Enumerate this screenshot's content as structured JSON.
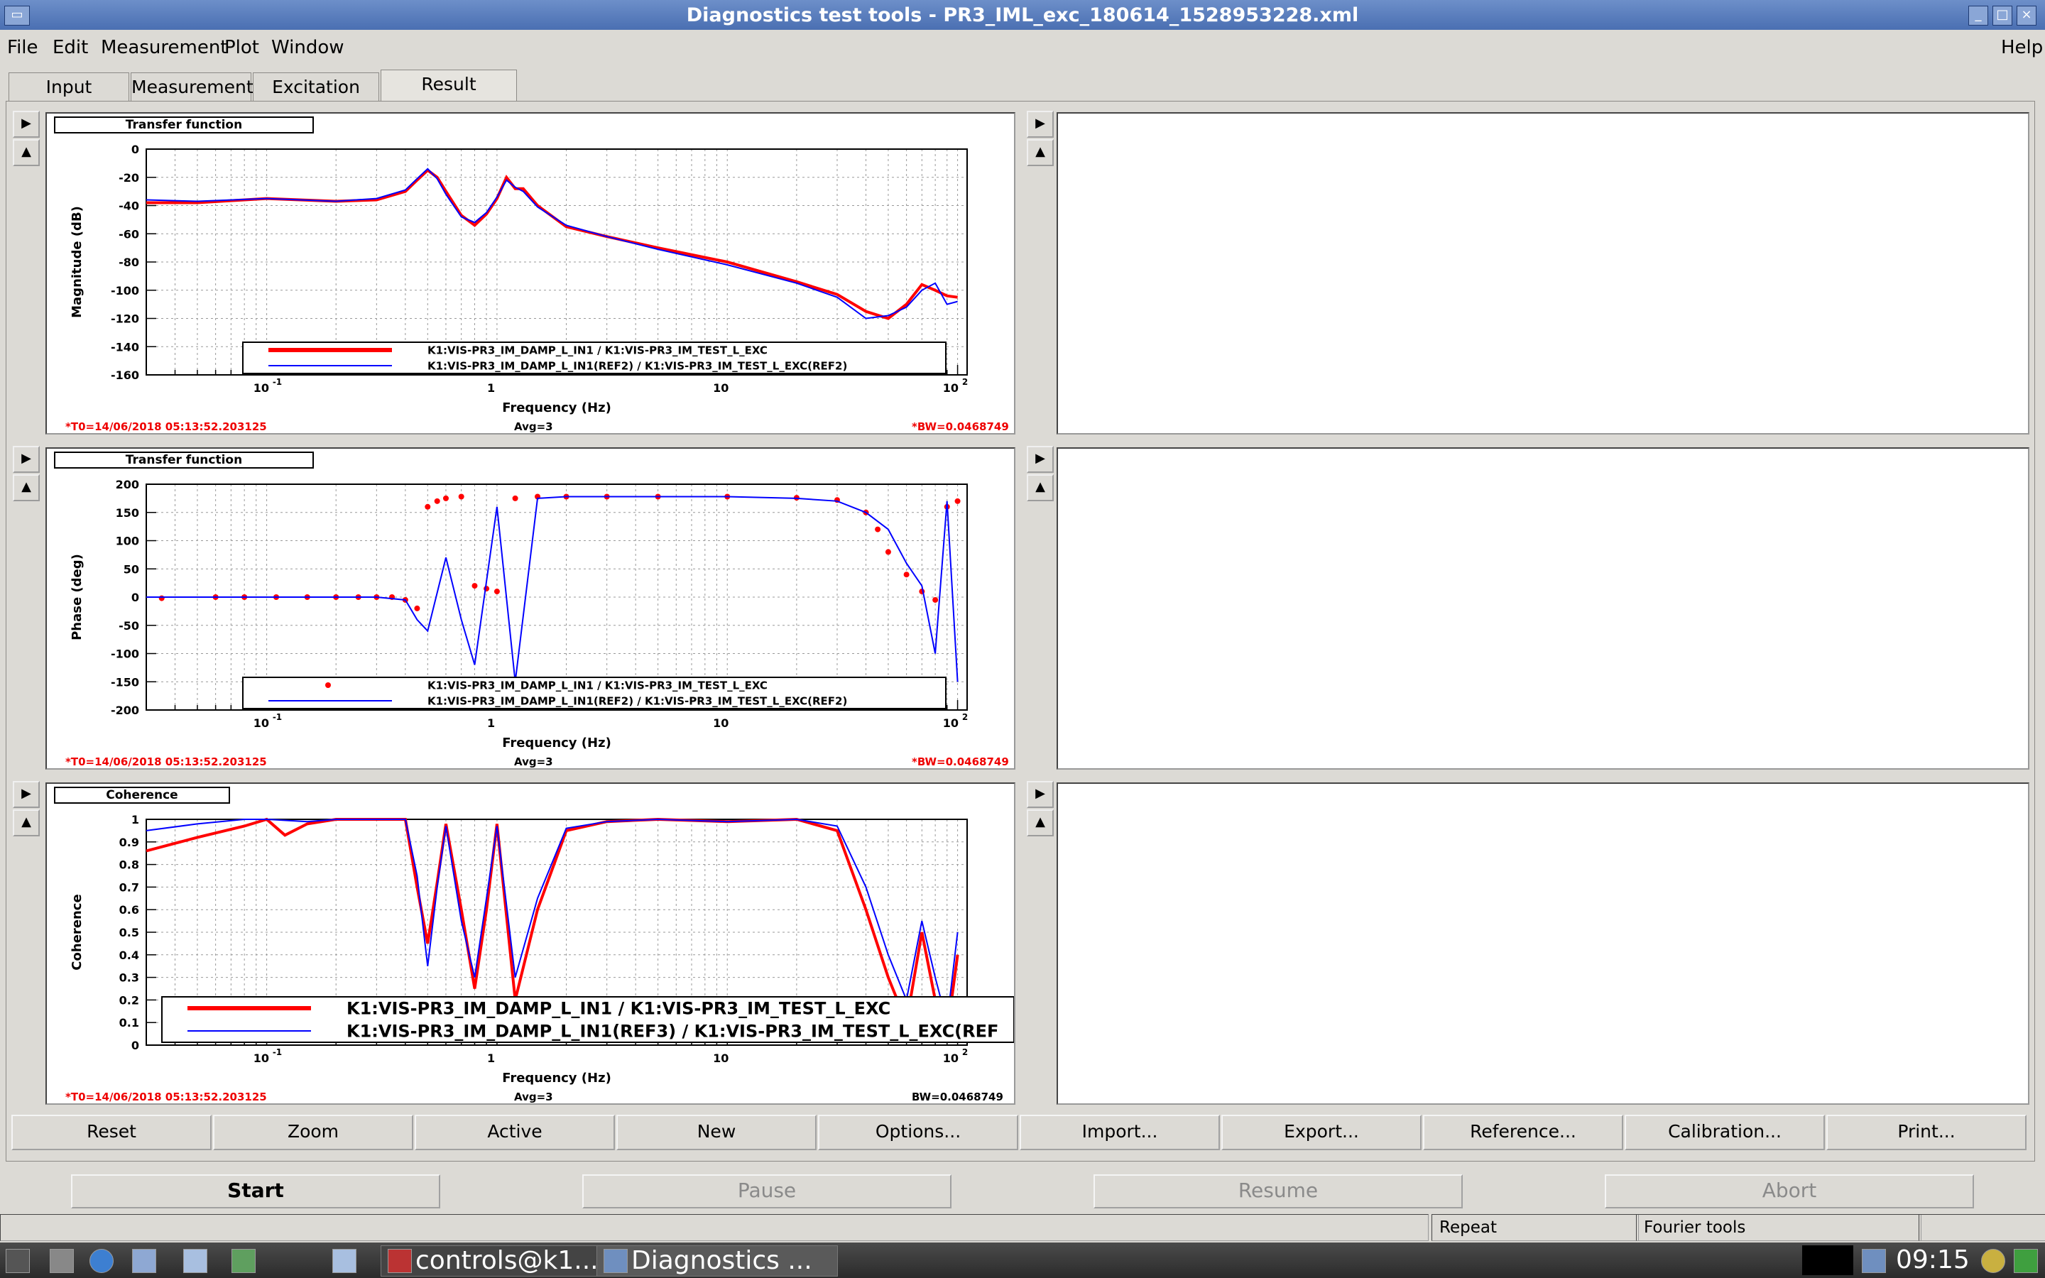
{
  "window": {
    "title": "Diagnostics test tools - PR3_IML_exc_180614_1528953228.xml"
  },
  "menus": [
    "File",
    "Edit",
    "Measurement",
    "Plot",
    "Window"
  ],
  "help_menu": "Help",
  "tabs": [
    "Input",
    "Measurement",
    "Excitation",
    "Result"
  ],
  "active_tab": "Result",
  "plots": [
    {
      "title": "Transfer function",
      "ylabel": "Magnitude (dB)",
      "xlabel": "Frequency (Hz)",
      "yticks": [
        "0",
        "-20",
        "-40",
        "-60",
        "-80",
        "-100",
        "-120",
        "-140",
        "-160"
      ],
      "xticks": [
        "10",
        "1",
        "10",
        "10"
      ],
      "xtick_exponents": [
        "-1",
        "",
        "",
        "2"
      ],
      "legend": [
        "K1:VIS-PR3_IM_DAMP_L_IN1 / K1:VIS-PR3_IM_TEST_L_EXC",
        "K1:VIS-PR3_IM_DAMP_L_IN1(REF2) / K1:VIS-PR3_IM_TEST_L_EXC(REF2)"
      ],
      "t0": "*T0=14/06/2018 05:13:52.203125",
      "avg": "Avg=3",
      "bw": "*BW=0.0468749"
    },
    {
      "title": "Transfer function",
      "ylabel": "Phase (deg)",
      "xlabel": "Frequency (Hz)",
      "yticks": [
        "200",
        "150",
        "100",
        "50",
        "0",
        "-50",
        "-100",
        "-150",
        "-200"
      ],
      "xticks": [
        "10",
        "1",
        "10",
        "10"
      ],
      "xtick_exponents": [
        "-1",
        "",
        "",
        "2"
      ],
      "legend": [
        "K1:VIS-PR3_IM_DAMP_L_IN1 / K1:VIS-PR3_IM_TEST_L_EXC",
        "K1:VIS-PR3_IM_DAMP_L_IN1(REF2) / K1:VIS-PR3_IM_TEST_L_EXC(REF2)"
      ],
      "t0": "*T0=14/06/2018 05:13:52.203125",
      "avg": "Avg=3",
      "bw": "*BW=0.0468749"
    },
    {
      "title": "Coherence",
      "ylabel": "Coherence",
      "xlabel": "Frequency (Hz)",
      "yticks": [
        "1",
        "0.9",
        "0.8",
        "0.7",
        "0.6",
        "0.5",
        "0.4",
        "0.3",
        "0.2",
        "0.1",
        "0"
      ],
      "xticks": [
        "10",
        "1",
        "10",
        "10"
      ],
      "xtick_exponents": [
        "-1",
        "",
        "",
        "2"
      ],
      "legend": [
        "K1:VIS-PR3_IM_DAMP_L_IN1 / K1:VIS-PR3_IM_TEST_L_EXC",
        "K1:VIS-PR3_IM_DAMP_L_IN1(REF3) / K1:VIS-PR3_IM_TEST_L_EXC(REF"
      ],
      "t0": "*T0=14/06/2018 05:13:52.203125",
      "avg": "Avg=3",
      "bw": "BW=0.0468749"
    }
  ],
  "toolbar_buttons": [
    "Reset",
    "Zoom",
    "Active",
    "New",
    "Options...",
    "Import...",
    "Export...",
    "Reference...",
    "Calibration...",
    "Print..."
  ],
  "control_buttons": {
    "start": "Start",
    "pause": "Pause",
    "resume": "Resume",
    "abort": "Abort"
  },
  "status": {
    "repeat": "Repeat",
    "fourier": "Fourier tools"
  },
  "taskbar": {
    "terminal": "controls@k1...",
    "diag": "Diagnostics ...",
    "clock": "09:15"
  },
  "colors": {
    "accent": "#ff0000",
    "reference": "#0000ff"
  },
  "chart_data": [
    {
      "type": "line",
      "title": "Transfer function",
      "xlabel": "Frequency (Hz)",
      "ylabel": "Magnitude (dB)",
      "xscale": "log",
      "xlim": [
        0.03,
        110
      ],
      "ylim": [
        -160,
        0
      ],
      "series": [
        {
          "name": "K1:VIS-PR3_IM_DAMP_L_IN1 / K1:VIS-PR3_IM_TEST_L_EXC",
          "color": "red",
          "x": [
            0.03,
            0.05,
            0.1,
            0.2,
            0.3,
            0.4,
            0.45,
            0.5,
            0.55,
            0.6,
            0.7,
            0.8,
            0.9,
            1.0,
            1.1,
            1.2,
            1.3,
            1.5,
            2,
            3,
            5,
            10,
            20,
            30,
            40,
            50,
            60,
            70,
            80,
            90,
            100
          ],
          "y": [
            -38,
            -38,
            -35,
            -37,
            -36,
            -30,
            -22,
            -15,
            -20,
            -30,
            -47,
            -54,
            -46,
            -35,
            -20,
            -28,
            -28,
            -40,
            -55,
            -62,
            -70,
            -80,
            -94,
            -103,
            -115,
            -120,
            -110,
            -96,
            -100,
            -104,
            -105
          ]
        },
        {
          "name": "K1:VIS-PR3_IM_DAMP_L_IN1(REF2) / K1:VIS-PR3_IM_TEST_L_EXC(REF2)",
          "color": "blue",
          "x": [
            0.03,
            0.05,
            0.1,
            0.2,
            0.3,
            0.4,
            0.45,
            0.5,
            0.55,
            0.6,
            0.7,
            0.8,
            0.9,
            1.0,
            1.1,
            1.2,
            1.3,
            1.5,
            2,
            3,
            5,
            10,
            20,
            30,
            40,
            50,
            60,
            70,
            80,
            90,
            100
          ],
          "y": [
            -36,
            -37,
            -35,
            -37,
            -35,
            -29,
            -21,
            -14,
            -21,
            -32,
            -48,
            -52,
            -45,
            -34,
            -22,
            -27,
            -30,
            -41,
            -54,
            -62,
            -71,
            -82,
            -95,
            -105,
            -120,
            -118,
            -112,
            -100,
            -95,
            -110,
            -108
          ]
        }
      ]
    },
    {
      "type": "scatter",
      "title": "Transfer function",
      "xlabel": "Frequency (Hz)",
      "ylabel": "Phase (deg)",
      "xscale": "log",
      "xlim": [
        0.03,
        110
      ],
      "ylim": [
        -200,
        200
      ],
      "series": [
        {
          "name": "K1:VIS-PR3_IM_DAMP_L_IN1 / K1:VIS-PR3_IM_TEST_L_EXC",
          "color": "red",
          "x": [
            0.035,
            0.06,
            0.08,
            0.11,
            0.15,
            0.2,
            0.25,
            0.3,
            0.35,
            0.4,
            0.45,
            0.5,
            0.55,
            0.6,
            0.7,
            0.8,
            0.9,
            1.0,
            1.2,
            1.5,
            2,
            3,
            5,
            10,
            20,
            30,
            40,
            45,
            50,
            60,
            70,
            80,
            90,
            100
          ],
          "y": [
            -2,
            0,
            0,
            0,
            0,
            0,
            0,
            0,
            0,
            -5,
            -20,
            160,
            170,
            175,
            178,
            20,
            15,
            10,
            175,
            178,
            178,
            178,
            178,
            178,
            176,
            172,
            150,
            120,
            80,
            40,
            10,
            -5,
            160,
            170
          ]
        },
        {
          "name": "K1:VIS-PR3_IM_DAMP_L_IN1(REF2) / K1:VIS-PR3_IM_TEST_L_EXC(REF2)",
          "color": "blue",
          "x": [
            0.03,
            0.05,
            0.1,
            0.2,
            0.3,
            0.4,
            0.45,
            0.5,
            0.6,
            0.7,
            0.8,
            1.0,
            1.2,
            1.5,
            2,
            3,
            5,
            10,
            20,
            30,
            40,
            50,
            60,
            70,
            80,
            90,
            100
          ],
          "y": [
            0,
            0,
            0,
            0,
            0,
            -5,
            -40,
            -60,
            70,
            -40,
            -120,
            160,
            -150,
            175,
            178,
            178,
            178,
            178,
            175,
            170,
            150,
            120,
            60,
            20,
            -100,
            170,
            -150
          ]
        }
      ]
    },
    {
      "type": "line",
      "title": "Coherence",
      "xlabel": "Frequency (Hz)",
      "ylabel": "Coherence",
      "xscale": "log",
      "xlim": [
        0.03,
        110
      ],
      "ylim": [
        0,
        1
      ],
      "series": [
        {
          "name": "K1:VIS-PR3_IM_DAMP_L_IN1 / K1:VIS-PR3_IM_TEST_L_EXC",
          "color": "red",
          "x": [
            0.03,
            0.05,
            0.08,
            0.1,
            0.12,
            0.15,
            0.2,
            0.3,
            0.4,
            0.45,
            0.5,
            0.55,
            0.6,
            0.7,
            0.8,
            0.9,
            1.0,
            1.2,
            1.5,
            2,
            3,
            5,
            10,
            20,
            30,
            40,
            50,
            60,
            70,
            80,
            90,
            100
          ],
          "y": [
            0.86,
            0.92,
            0.97,
            1.0,
            0.93,
            0.98,
            1.0,
            1.0,
            1.0,
            0.7,
            0.45,
            0.72,
            0.98,
            0.6,
            0.25,
            0.6,
            0.98,
            0.2,
            0.6,
            0.95,
            0.99,
            1.0,
            0.99,
            1.0,
            0.95,
            0.6,
            0.3,
            0.1,
            0.5,
            0.2,
            0.05,
            0.4
          ]
        },
        {
          "name": "K1:VIS-PR3_IM_DAMP_L_IN1(REF3) / K1:VIS-PR3_IM_TEST_L_EXC(REF",
          "color": "blue",
          "x": [
            0.03,
            0.05,
            0.08,
            0.1,
            0.15,
            0.2,
            0.3,
            0.4,
            0.45,
            0.5,
            0.55,
            0.6,
            0.7,
            0.8,
            0.9,
            1.0,
            1.2,
            1.5,
            2,
            3,
            5,
            10,
            20,
            30,
            40,
            50,
            60,
            70,
            80,
            90,
            100
          ],
          "y": [
            0.95,
            0.98,
            1.0,
            1.0,
            0.99,
            1.0,
            1.0,
            1.0,
            0.75,
            0.35,
            0.7,
            0.97,
            0.55,
            0.3,
            0.65,
            0.97,
            0.3,
            0.65,
            0.96,
            0.99,
            1.0,
            0.99,
            1.0,
            0.97,
            0.7,
            0.4,
            0.2,
            0.55,
            0.3,
            0.1,
            0.5
          ]
        }
      ]
    }
  ]
}
